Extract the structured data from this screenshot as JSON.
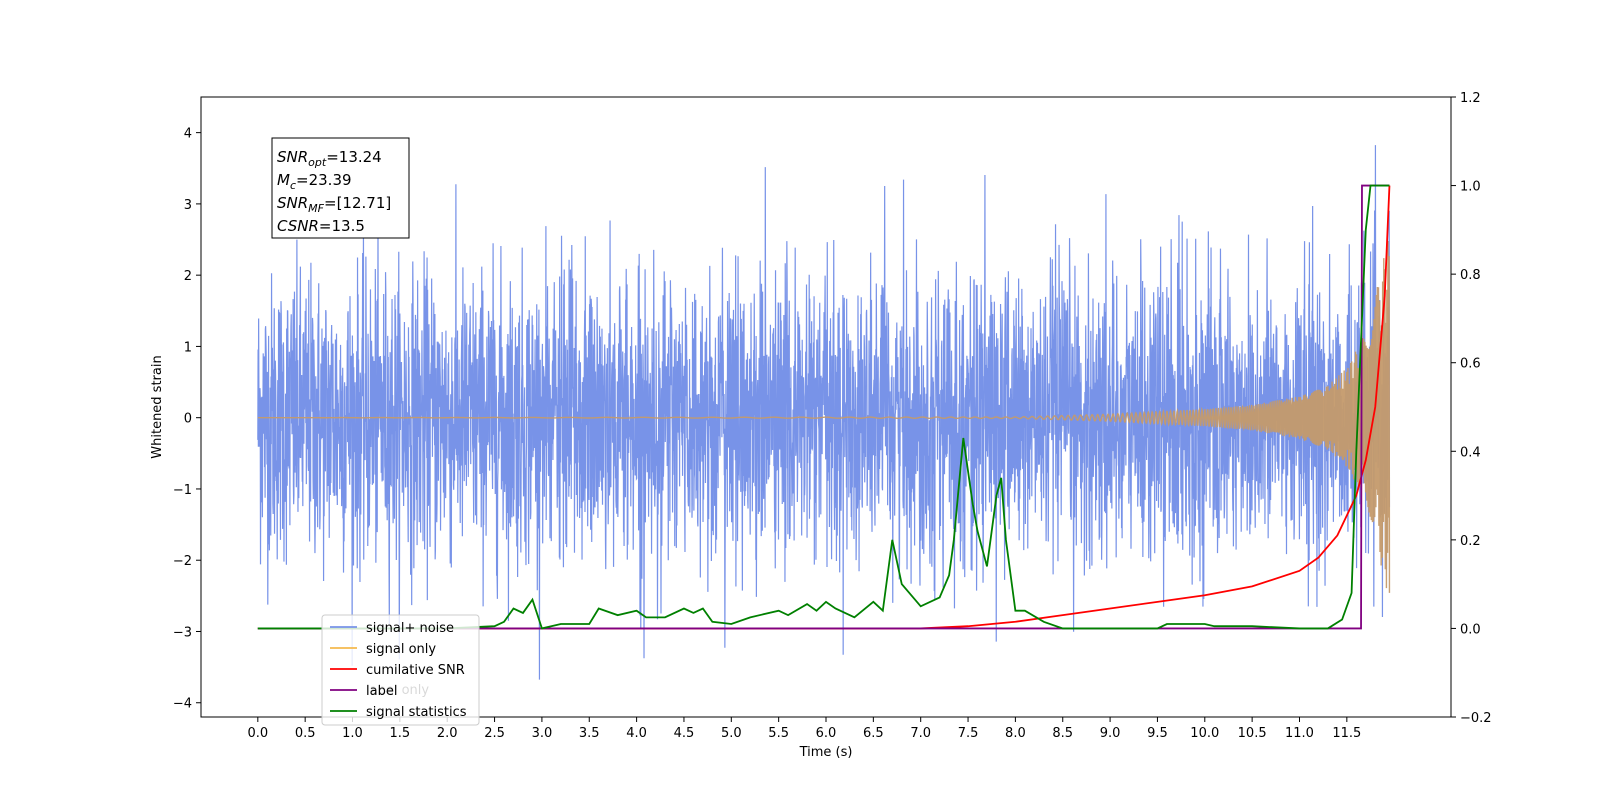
{
  "chart_data": {
    "type": "line",
    "title": "",
    "xlabel": "Time (s)",
    "ylabel_left": "Whitened strain",
    "ylabel_right": "",
    "xlim": [
      -0.6,
      12.6
    ],
    "ylim_left": [
      -4.2,
      4.5
    ],
    "ylim_right": [
      -0.2,
      1.2
    ],
    "x_ticks": [
      "0.0",
      "0.5",
      "1.0",
      "1.5",
      "2.0",
      "2.5",
      "3.0",
      "3.5",
      "4.0",
      "4.5",
      "5.0",
      "5.5",
      "6.0",
      "6.5",
      "7.0",
      "7.5",
      "8.0",
      "8.5",
      "9.0",
      "9.5",
      "10.0",
      "10.5",
      "11.0",
      "11.5"
    ],
    "y_ticks_left": [
      "−4",
      "−3",
      "−2",
      "−1",
      "0",
      "1",
      "2",
      "3",
      "4"
    ],
    "y_ticks_right": [
      "−0.2",
      "0.0",
      "0.2",
      "0.4",
      "0.6",
      "0.8",
      "1.0",
      "1.2"
    ],
    "grid": false,
    "legend_position": "bottom-left",
    "annotation": {
      "lines": [
        {
          "base": "SNR",
          "sub": "opt",
          "rest": "=13.24"
        },
        {
          "base": "M",
          "sub": "c",
          "rest": "=23.39"
        },
        {
          "base": "SNR",
          "sub": "MF",
          "rest": "=[12.71]"
        },
        {
          "base": "CSNR",
          "sub": "",
          "rest": "=13.5"
        }
      ]
    },
    "series": [
      {
        "name": "signal+ noise",
        "axis": "left",
        "color": "#7893e8",
        "kind": "noise",
        "x_range": [
          0.0,
          11.95
        ],
        "typical_amplitude": 1.6,
        "max_value": 4.1,
        "min_value": -3.8
      },
      {
        "name": "signal only",
        "axis": "left",
        "color": "#f5b94e",
        "kind": "chirp",
        "x_range": [
          0.0,
          11.95
        ],
        "envelope": {
          "x": [
            0.0,
            8.0,
            9.0,
            10.0,
            10.5,
            11.0,
            11.3,
            11.5,
            11.7,
            11.8,
            11.9,
            11.95
          ],
          "amp": [
            0.0,
            0.01,
            0.05,
            0.12,
            0.18,
            0.3,
            0.45,
            0.7,
            1.2,
            1.7,
            2.3,
            2.6
          ]
        }
      },
      {
        "name": "cumilative SNR",
        "axis": "right",
        "color": "#ff0000",
        "x": [
          0.0,
          6.5,
          7.0,
          7.5,
          8.0,
          8.5,
          9.0,
          9.5,
          10.0,
          10.5,
          11.0,
          11.2,
          11.4,
          11.6,
          11.7,
          11.8,
          11.9,
          11.95
        ],
        "y": [
          0.0,
          0.0,
          0.0,
          0.005,
          0.015,
          0.03,
          0.045,
          0.06,
          0.075,
          0.095,
          0.13,
          0.16,
          0.21,
          0.3,
          0.38,
          0.5,
          0.75,
          1.0
        ]
      },
      {
        "name": "label",
        "axis": "right",
        "color": "#800080",
        "x": [
          0.0,
          11.65,
          11.66,
          11.95
        ],
        "y": [
          0.0,
          0.0,
          1.0,
          1.0
        ]
      },
      {
        "name": "signal statistics",
        "axis": "right",
        "color": "#008000",
        "x": [
          0.0,
          1.0,
          2.0,
          2.5,
          2.6,
          2.7,
          2.8,
          2.9,
          3.0,
          3.2,
          3.5,
          3.6,
          3.8,
          4.0,
          4.1,
          4.3,
          4.5,
          4.6,
          4.7,
          4.8,
          5.0,
          5.2,
          5.5,
          5.6,
          5.8,
          5.9,
          6.0,
          6.1,
          6.3,
          6.5,
          6.6,
          6.7,
          6.8,
          7.0,
          7.2,
          7.3,
          7.35,
          7.45,
          7.55,
          7.6,
          7.7,
          7.8,
          7.85,
          7.9,
          8.0,
          8.1,
          8.3,
          8.5,
          9.0,
          9.5,
          9.6,
          9.9,
          10.0,
          10.1,
          10.5,
          11.0,
          11.3,
          11.45,
          11.55,
          11.6,
          11.7,
          11.75,
          11.8,
          11.95
        ],
        "y": [
          0.0,
          0.0,
          0.0,
          0.005,
          0.015,
          0.045,
          0.035,
          0.065,
          0.0,
          0.01,
          0.01,
          0.045,
          0.03,
          0.04,
          0.025,
          0.025,
          0.045,
          0.035,
          0.045,
          0.015,
          0.01,
          0.025,
          0.04,
          0.03,
          0.055,
          0.04,
          0.06,
          0.045,
          0.025,
          0.06,
          0.04,
          0.2,
          0.1,
          0.05,
          0.07,
          0.12,
          0.2,
          0.43,
          0.28,
          0.22,
          0.14,
          0.3,
          0.34,
          0.2,
          0.04,
          0.04,
          0.015,
          0.0,
          0.0,
          0.0,
          0.01,
          0.01,
          0.01,
          0.005,
          0.005,
          0.0,
          0.0,
          0.02,
          0.08,
          0.4,
          0.9,
          1.0,
          1.0,
          1.0
        ]
      }
    ],
    "legend": [
      {
        "label": "signal+ noise",
        "color": "#7893e8"
      },
      {
        "label": "signal only",
        "color": "#f5b94e"
      },
      {
        "label": "cumilative SNR",
        "color": "#ff0000"
      },
      {
        "label": "label",
        "color": "#800080"
      },
      {
        "label": "signal statistics",
        "color": "#008000"
      }
    ],
    "legend_hidden_text": "label only"
  }
}
